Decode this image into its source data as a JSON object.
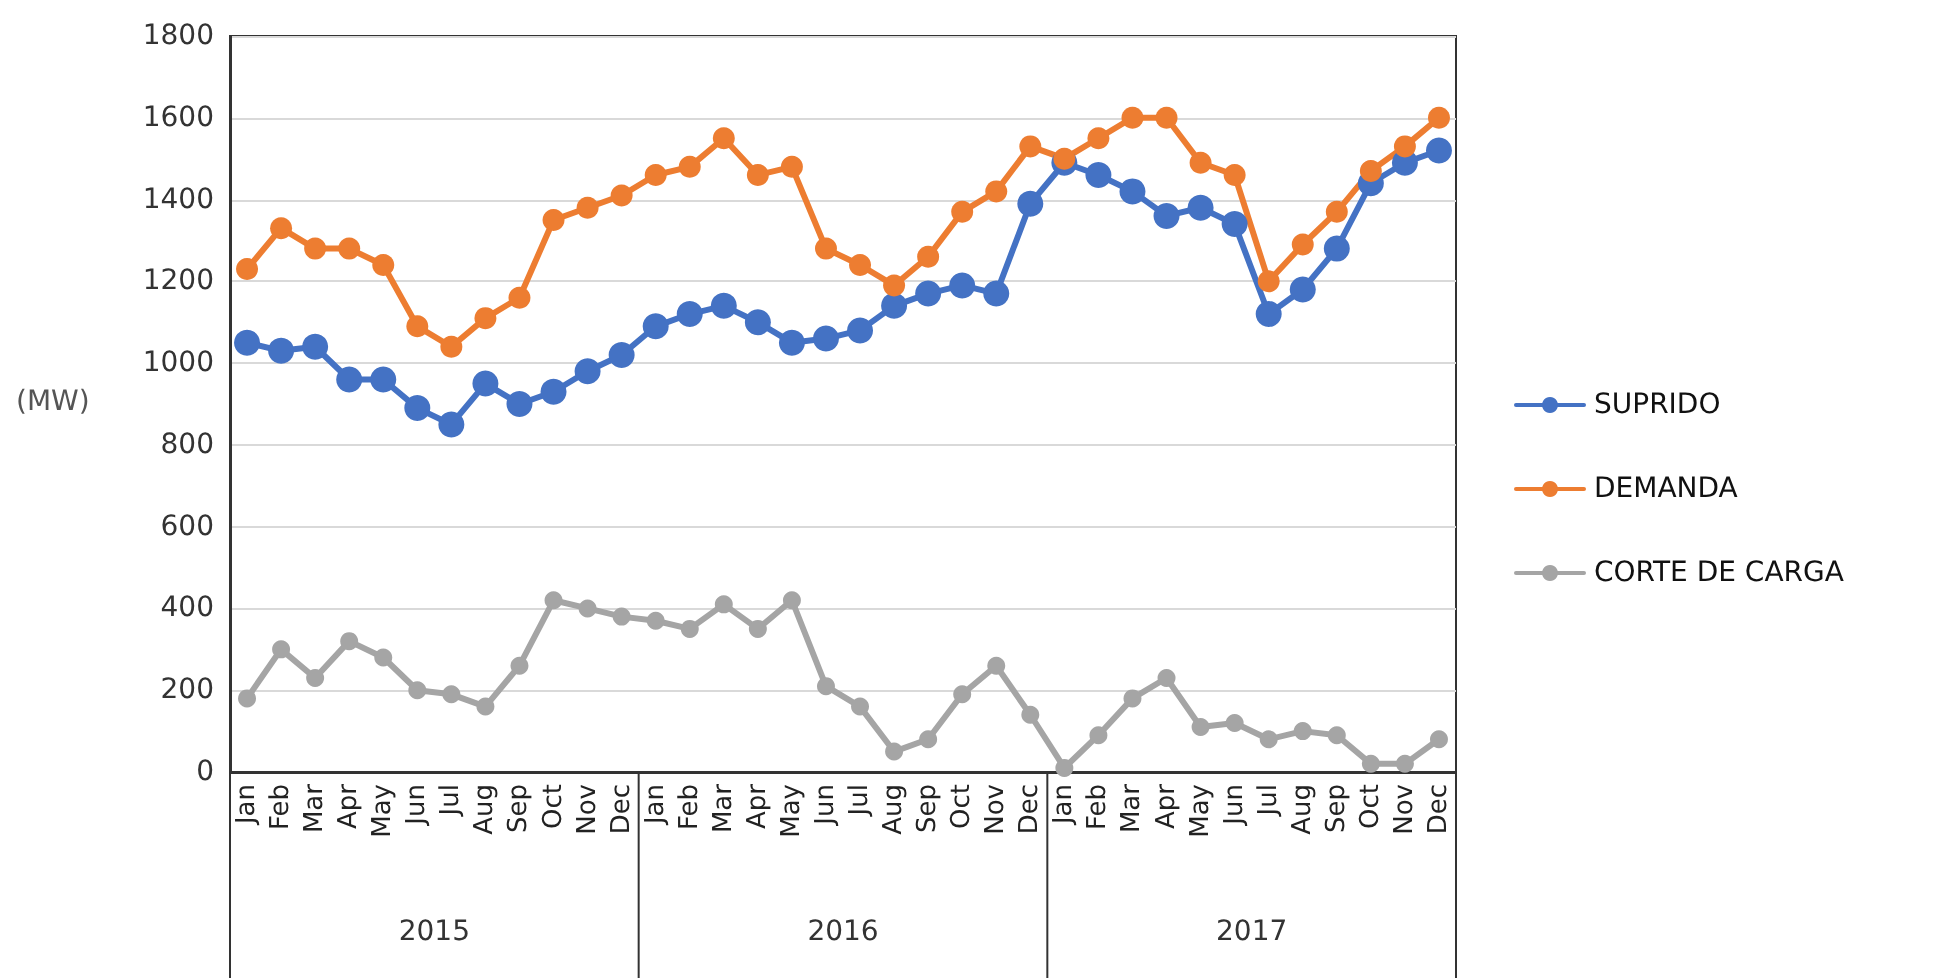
{
  "chart_data": {
    "type": "line",
    "ylabel": "(MW)",
    "categories": [
      "Jan",
      "Feb",
      "Mar",
      "Apr",
      "May",
      "Jun",
      "Jul",
      "Aug",
      "Sep",
      "Oct",
      "Nov",
      "Dec",
      "Jan",
      "Feb",
      "Mar",
      "Apr",
      "May",
      "Jun",
      "Jul",
      "Aug",
      "Sep",
      "Oct",
      "Nov",
      "Dec",
      "Jan",
      "Feb",
      "Mar",
      "Apr",
      "May",
      "Jun",
      "Jul",
      "Aug",
      "Sep",
      "Oct",
      "Nov",
      "Dec"
    ],
    "annotations": [
      "2015",
      "2016",
      "2017"
    ],
    "series": [
      {
        "name": "SUPRIDO",
        "color": "#4472c4",
        "values": [
          1050,
          1030,
          1040,
          960,
          960,
          890,
          850,
          950,
          900,
          930,
          980,
          1020,
          1090,
          1120,
          1140,
          1100,
          1050,
          1060,
          1080,
          1140,
          1170,
          1190,
          1170,
          1390,
          1490,
          1460,
          1420,
          1360,
          1380,
          1340,
          1120,
          1180,
          1280,
          1440,
          1490,
          1520
        ]
      },
      {
        "name": "DEMANDA",
        "color": "#ed7d31",
        "values": [
          1230,
          1330,
          1280,
          1280,
          1240,
          1090,
          1040,
          1110,
          1160,
          1350,
          1380,
          1410,
          1460,
          1480,
          1550,
          1460,
          1480,
          1280,
          1240,
          1190,
          1260,
          1370,
          1420,
          1530,
          1500,
          1550,
          1600,
          1600,
          1490,
          1460,
          1200,
          1290,
          1370,
          1470,
          1530,
          1600
        ]
      },
      {
        "name": "CORTE DE CARGA",
        "color": "#a5a5a5",
        "values": [
          180,
          300,
          230,
          320,
          280,
          200,
          190,
          160,
          260,
          420,
          400,
          380,
          370,
          350,
          410,
          350,
          420,
          210,
          160,
          50,
          80,
          190,
          260,
          140,
          10,
          90,
          180,
          230,
          110,
          120,
          80,
          100,
          90,
          20,
          20,
          80
        ]
      }
    ],
    "ylim": [
      0,
      1800
    ],
    "yticks": [
      0,
      200,
      400,
      600,
      800,
      1000,
      1200,
      1400,
      1600,
      1800
    ],
    "grid": "y",
    "legend": "right",
    "marker": "circle",
    "line_style": "solid"
  }
}
